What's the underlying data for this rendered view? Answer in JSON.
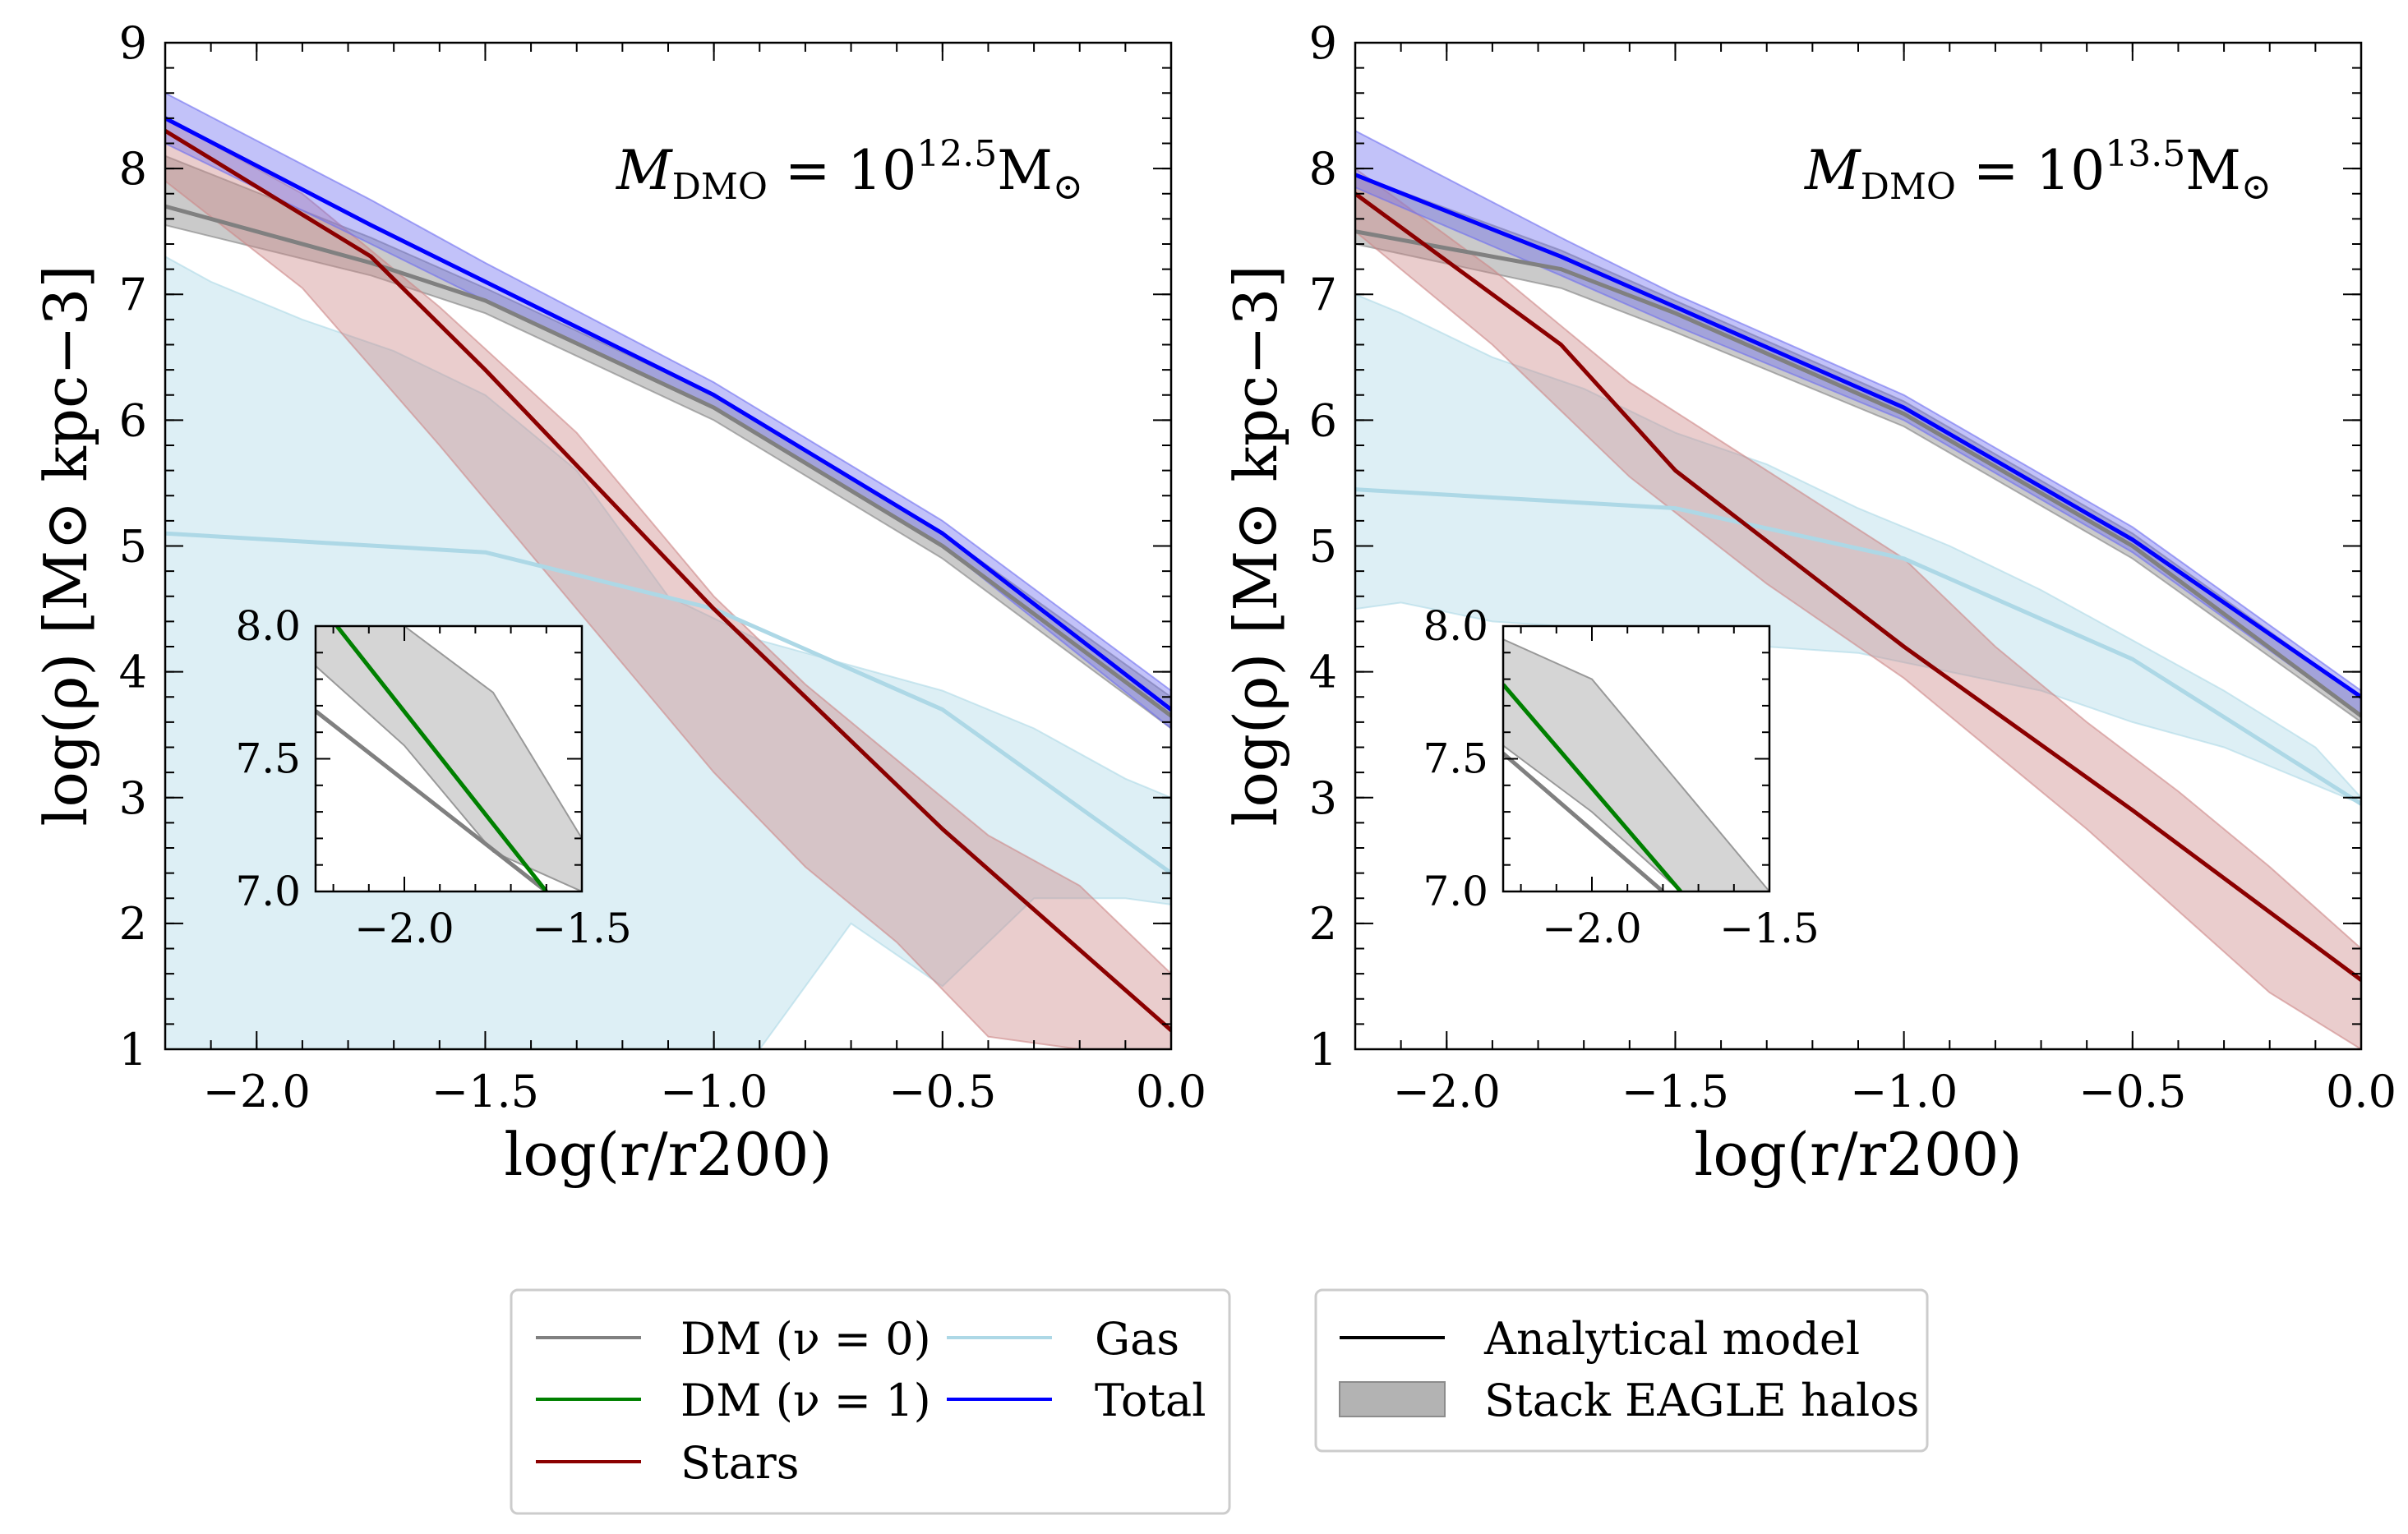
{
  "chart_data": [
    {
      "type": "line",
      "id": "left",
      "annotation": {
        "sym": "M",
        "sub": "DMO",
        "eq": " = 10",
        "exp": "12.5",
        "unit": "M",
        "odot": "⊙"
      },
      "xlabel": "log(r/r200)",
      "ylabel": "log(ρ) [M⊙ kpc−3]",
      "xlim": [
        -2.2,
        0.0
      ],
      "ylim": [
        1,
        9
      ],
      "xticks": [
        -2.0,
        -1.5,
        -1.0,
        -0.5,
        0.0
      ],
      "xtick_labels": [
        "−2.0",
        "−1.5",
        "−1.0",
        "−0.5",
        "0.0"
      ],
      "yticks": [
        1,
        2,
        3,
        4,
        5,
        6,
        7,
        8,
        9
      ],
      "ytick_labels": [
        "1",
        "2",
        "3",
        "4",
        "5",
        "6",
        "7",
        "8",
        "9"
      ],
      "series": [
        {
          "name": "Gas",
          "color": "#add8e6",
          "x": [
            -2.2,
            -1.5,
            -1.0,
            -0.5,
            0.0
          ],
          "values": [
            5.1,
            4.95,
            4.5,
            3.7,
            2.4
          ]
        },
        {
          "name": "DM (ν = 0)",
          "color": "#808080",
          "x": [
            -2.2,
            -1.75,
            -1.5,
            -1.0,
            -0.5,
            0.0
          ],
          "values": [
            7.7,
            7.25,
            6.95,
            6.1,
            5.0,
            3.65
          ]
        },
        {
          "name": "Stars",
          "color": "#8b0000",
          "x": [
            -2.2,
            -1.75,
            -1.5,
            -1.0,
            -0.5,
            0.0
          ],
          "values": [
            8.3,
            7.3,
            6.4,
            4.5,
            2.75,
            1.15
          ]
        },
        {
          "name": "Total",
          "color": "#0000ff",
          "x": [
            -2.2,
            -1.75,
            -1.5,
            -1.0,
            -0.5,
            0.0
          ],
          "values": [
            8.4,
            7.55,
            7.1,
            6.2,
            5.1,
            3.7
          ]
        }
      ],
      "bands": [
        {
          "name": "Gas",
          "color": "#add8e6",
          "x": [
            -2.2,
            -2.1,
            -1.9,
            -1.7,
            -1.5,
            -1.3,
            -1.1,
            -0.9,
            -0.7,
            -0.5,
            -0.3,
            -0.1,
            0.0
          ],
          "upper": [
            7.3,
            7.1,
            6.8,
            6.55,
            6.2,
            5.6,
            4.6,
            4.25,
            4.05,
            3.85,
            3.55,
            3.15,
            3.0
          ],
          "lower": [
            1.0,
            1.0,
            1.0,
            1.0,
            1.0,
            1.0,
            1.0,
            1.0,
            2.0,
            1.5,
            2.2,
            2.2,
            2.15
          ]
        },
        {
          "name": "DM",
          "color": "#808080",
          "x": [
            -2.2,
            -1.75,
            -1.5,
            -1.0,
            -0.5,
            0.0
          ],
          "upper": [
            8.1,
            7.45,
            7.05,
            6.2,
            5.1,
            3.8
          ],
          "lower": [
            7.55,
            7.15,
            6.85,
            6.0,
            4.9,
            3.55
          ]
        },
        {
          "name": "Stars",
          "color": "#cd8787",
          "x": [
            -2.2,
            -1.9,
            -1.6,
            -1.3,
            -1.0,
            -0.8,
            -0.6,
            -0.4,
            -0.2,
            0.0
          ],
          "upper": [
            8.4,
            7.8,
            6.9,
            5.9,
            4.6,
            3.9,
            3.3,
            2.7,
            2.3,
            1.6
          ],
          "lower": [
            7.9,
            7.05,
            5.8,
            4.5,
            3.2,
            2.45,
            1.85,
            1.1,
            1.0,
            1.0
          ]
        },
        {
          "name": "Total",
          "color": "#6e6ef0",
          "x": [
            -2.2,
            -1.75,
            -1.5,
            -1.0,
            -0.5,
            0.0
          ],
          "upper": [
            8.6,
            7.75,
            7.25,
            6.3,
            5.2,
            3.85
          ],
          "lower": [
            8.2,
            7.4,
            6.95,
            6.1,
            5.0,
            3.55
          ]
        }
      ],
      "inset": {
        "xlim": [
          -2.25,
          -1.5
        ],
        "ylim": [
          7.0,
          8.0
        ],
        "xticks": [
          -2.0,
          -1.5
        ],
        "xtick_labels": [
          "−2.0",
          "−1.5"
        ],
        "yticks": [
          7.0,
          7.5,
          8.0
        ],
        "ytick_labels": [
          "7.0",
          "7.5",
          "8.0"
        ],
        "dm0": {
          "x": [
            -2.25,
            -1.6
          ],
          "y": [
            7.68,
            7.0
          ]
        },
        "dm1": {
          "x": [
            -2.19,
            -1.6
          ],
          "y": [
            8.0,
            7.0
          ]
        },
        "band": {
          "x": [
            -2.25,
            -2.0,
            -1.75,
            -1.5
          ],
          "upper": [
            8.0,
            8.0,
            7.75,
            7.2
          ],
          "lower": [
            7.85,
            7.55,
            7.15,
            7.0
          ]
        }
      }
    },
    {
      "type": "line",
      "id": "right",
      "annotation": {
        "sym": "M",
        "sub": "DMO",
        "eq": " = 10",
        "exp": "13.5",
        "unit": "M",
        "odot": "⊙"
      },
      "xlabel": "log(r/r200)",
      "ylabel": "log(ρ) [M⊙ kpc−3]",
      "xlim": [
        -2.2,
        0.0
      ],
      "ylim": [
        1,
        9
      ],
      "xticks": [
        -2.0,
        -1.5,
        -1.0,
        -0.5,
        0.0
      ],
      "xtick_labels": [
        "−2.0",
        "−1.5",
        "−1.0",
        "−0.5",
        "0.0"
      ],
      "yticks": [
        1,
        2,
        3,
        4,
        5,
        6,
        7,
        8,
        9
      ],
      "ytick_labels": [
        "1",
        "2",
        "3",
        "4",
        "5",
        "6",
        "7",
        "8",
        "9"
      ],
      "series": [
        {
          "name": "Gas",
          "color": "#add8e6",
          "x": [
            -2.2,
            -1.5,
            -1.0,
            -0.5,
            0.0
          ],
          "values": [
            5.45,
            5.3,
            4.9,
            4.1,
            2.95
          ]
        },
        {
          "name": "DM (ν = 0)",
          "color": "#808080",
          "x": [
            -2.2,
            -1.75,
            -1.5,
            -1.0,
            -0.5,
            0.0
          ],
          "values": [
            7.5,
            7.2,
            6.85,
            6.05,
            5.0,
            3.65
          ]
        },
        {
          "name": "Stars",
          "color": "#8b0000",
          "x": [
            -2.2,
            -1.75,
            -1.5,
            -1.0,
            -0.5,
            0.0
          ],
          "values": [
            7.8,
            6.6,
            5.6,
            4.2,
            2.9,
            1.55
          ]
        },
        {
          "name": "Total",
          "color": "#0000ff",
          "x": [
            -2.2,
            -1.75,
            -1.5,
            -1.0,
            -0.5,
            0.0
          ],
          "values": [
            7.95,
            7.3,
            6.9,
            6.1,
            5.05,
            3.8
          ]
        }
      ],
      "bands": [
        {
          "name": "Gas",
          "color": "#add8e6",
          "x": [
            -2.2,
            -2.1,
            -1.9,
            -1.7,
            -1.5,
            -1.3,
            -1.1,
            -0.9,
            -0.7,
            -0.5,
            -0.3,
            -0.1,
            0.0
          ],
          "upper": [
            7.0,
            6.85,
            6.5,
            6.25,
            5.9,
            5.65,
            5.3,
            5.0,
            4.65,
            4.25,
            3.85,
            3.4,
            3.0
          ],
          "lower": [
            4.5,
            4.55,
            4.4,
            4.35,
            4.3,
            4.2,
            4.15,
            4.0,
            3.85,
            3.6,
            3.4,
            3.1,
            2.95
          ]
        },
        {
          "name": "DM",
          "color": "#808080",
          "x": [
            -2.2,
            -1.75,
            -1.5,
            -1.0,
            -0.5,
            0.0
          ],
          "upper": [
            7.95,
            7.35,
            6.95,
            6.15,
            5.1,
            3.8
          ],
          "lower": [
            7.4,
            7.05,
            6.7,
            5.95,
            4.9,
            3.6
          ]
        },
        {
          "name": "Stars",
          "color": "#cd8787",
          "x": [
            -2.2,
            -1.9,
            -1.6,
            -1.3,
            -1.0,
            -0.8,
            -0.6,
            -0.4,
            -0.2,
            0.0
          ],
          "upper": [
            8.0,
            7.2,
            6.3,
            5.6,
            4.9,
            4.2,
            3.6,
            3.05,
            2.45,
            1.8
          ],
          "lower": [
            7.5,
            6.6,
            5.55,
            4.7,
            3.95,
            3.35,
            2.75,
            2.1,
            1.45,
            1.0
          ]
        },
        {
          "name": "Total",
          "color": "#6e6ef0",
          "x": [
            -2.2,
            -1.75,
            -1.5,
            -1.0,
            -0.5,
            0.0
          ],
          "upper": [
            8.3,
            7.45,
            7.0,
            6.2,
            5.15,
            3.85
          ],
          "lower": [
            7.85,
            7.15,
            6.75,
            6.0,
            4.95,
            3.65
          ]
        }
      ],
      "inset": {
        "xlim": [
          -2.25,
          -1.5
        ],
        "ylim": [
          7.0,
          8.0
        ],
        "xticks": [
          -2.0,
          -1.5
        ],
        "xtick_labels": [
          "−2.0",
          "−1.5"
        ],
        "yticks": [
          7.0,
          7.5,
          8.0
        ],
        "ytick_labels": [
          "7.0",
          "7.5",
          "8.0"
        ],
        "dm0": {
          "x": [
            -2.25,
            -1.8
          ],
          "y": [
            7.52,
            7.0
          ]
        },
        "dm1": {
          "x": [
            -2.25,
            -1.75
          ],
          "y": [
            7.78,
            7.0
          ]
        },
        "band": {
          "x": [
            -2.25,
            -2.0,
            -1.75,
            -1.5
          ],
          "upper": [
            7.95,
            7.8,
            7.4,
            7.0
          ],
          "lower": [
            7.55,
            7.3,
            7.0,
            7.0
          ]
        }
      }
    }
  ],
  "legend_components": {
    "items": [
      {
        "label": "DM (ν = 0)",
        "color": "#808080"
      },
      {
        "label": "DM (ν = 1)",
        "color": "#008000"
      },
      {
        "label": "Stars",
        "color": "#8b0000"
      },
      {
        "label": "Gas",
        "color": "#add8e6"
      },
      {
        "label": "Total",
        "color": "#0000ff"
      }
    ]
  },
  "legend_style": {
    "items": [
      {
        "label": "Analytical model",
        "kind": "line",
        "color": "#000000"
      },
      {
        "label": "Stack EAGLE halos",
        "kind": "patch",
        "color": "#b3b3b3"
      }
    ]
  }
}
